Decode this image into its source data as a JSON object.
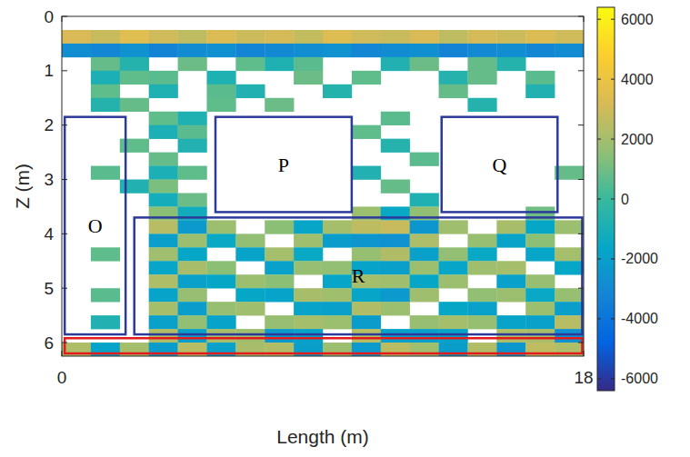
{
  "chart_data": {
    "type": "heatmap",
    "xlabel": "Length (m)",
    "ylabel": "Z (m)",
    "x": [
      0.5,
      1.5,
      2.5,
      3.5,
      4.5,
      5.5,
      6.5,
      7.5,
      8.5,
      9.5,
      10.5,
      11.5,
      12.5,
      13.5,
      14.5,
      15.5,
      16.5,
      17.5
    ],
    "y": [
      0.375,
      0.625,
      0.875,
      1.125,
      1.375,
      1.625,
      1.875,
      2.125,
      2.375,
      2.625,
      2.875,
      3.125,
      3.375,
      3.625,
      3.875,
      4.125,
      4.375,
      4.625,
      4.875,
      5.125,
      5.375,
      5.625,
      5.875,
      6.125
    ],
    "cells": [
      [
        3200,
        2800,
        3500,
        3000,
        2600,
        3300,
        2900,
        3100,
        2700,
        3400,
        3000,
        2800,
        3200,
        2600,
        3100,
        2900,
        3300,
        3000
      ],
      [
        -2800,
        -3100,
        -2600,
        -3300,
        -2900,
        -2700,
        -3200,
        -3000,
        -2800,
        -2600,
        -3100,
        -2900,
        -2700,
        -3300,
        -3000,
        -2800,
        -3100,
        -2900
      ],
      [
        null,
        800,
        -600,
        null,
        900,
        null,
        700,
        -800,
        600,
        null,
        null,
        -700,
        900,
        null,
        800,
        -600,
        null,
        null
      ],
      [
        null,
        -900,
        700,
        600,
        null,
        -800,
        null,
        null,
        900,
        null,
        700,
        null,
        null,
        -600,
        800,
        null,
        600,
        null
      ],
      [
        null,
        700,
        null,
        -800,
        null,
        600,
        -700,
        null,
        null,
        -600,
        null,
        null,
        null,
        800,
        null,
        null,
        -700,
        null
      ],
      [
        null,
        -600,
        800,
        null,
        null,
        700,
        null,
        900,
        null,
        null,
        null,
        null,
        null,
        null,
        -600,
        null,
        null,
        null
      ],
      [
        null,
        null,
        null,
        700,
        -800,
        null,
        null,
        null,
        null,
        null,
        null,
        600,
        null,
        null,
        null,
        null,
        null,
        null
      ],
      [
        null,
        null,
        null,
        -900,
        600,
        null,
        null,
        null,
        null,
        null,
        700,
        null,
        null,
        null,
        null,
        null,
        null,
        null
      ],
      [
        null,
        null,
        700,
        null,
        -700,
        null,
        null,
        null,
        null,
        null,
        null,
        -600,
        null,
        null,
        null,
        null,
        null,
        null
      ],
      [
        null,
        null,
        null,
        800,
        null,
        null,
        null,
        null,
        null,
        null,
        null,
        null,
        600,
        null,
        null,
        null,
        null,
        null
      ],
      [
        null,
        600,
        null,
        -900,
        700,
        null,
        null,
        null,
        null,
        null,
        -700,
        null,
        null,
        null,
        null,
        null,
        null,
        800
      ],
      [
        null,
        null,
        -700,
        1200,
        null,
        null,
        null,
        null,
        null,
        null,
        null,
        800,
        null,
        null,
        null,
        null,
        null,
        null
      ],
      [
        null,
        null,
        null,
        -1100,
        900,
        null,
        null,
        null,
        null,
        null,
        null,
        null,
        -800,
        null,
        null,
        null,
        null,
        null
      ],
      [
        null,
        null,
        null,
        1500,
        -1200,
        null,
        null,
        null,
        null,
        null,
        1800,
        -1500,
        1600,
        null,
        null,
        null,
        1000,
        null
      ],
      [
        null,
        null,
        null,
        2400,
        -2200,
        1800,
        null,
        1500,
        -1700,
        2000,
        2600,
        2800,
        -2400,
        1900,
        null,
        2100,
        -1600,
        1800
      ],
      [
        null,
        null,
        null,
        -2000,
        1800,
        -1500,
        1600,
        null,
        1900,
        -2100,
        -2400,
        -2600,
        2200,
        null,
        1700,
        -1800,
        1500,
        null
      ],
      [
        null,
        700,
        null,
        1900,
        -1600,
        null,
        -1800,
        2000,
        -1500,
        null,
        1700,
        2300,
        -1900,
        1600,
        -1500,
        null,
        -1700,
        2000
      ],
      [
        null,
        null,
        null,
        -1700,
        2100,
        1500,
        null,
        -1900,
        1700,
        1600,
        -1800,
        -2000,
        1800,
        -1700,
        1900,
        2000,
        null,
        -1600
      ],
      [
        null,
        null,
        null,
        2200,
        -1900,
        -1600,
        1800,
        1500,
        null,
        -1700,
        2000,
        1900,
        -1600,
        1800,
        null,
        -1900,
        1700,
        null
      ],
      [
        null,
        600,
        null,
        -1800,
        1700,
        null,
        -1600,
        -1800,
        2100,
        1900,
        -1700,
        -2200,
        1900,
        null,
        1600,
        1800,
        -1500,
        1700
      ],
      [
        null,
        null,
        null,
        2000,
        -2100,
        1700,
        1900,
        null,
        -1800,
        -2000,
        2300,
        1800,
        null,
        -1600,
        -1900,
        null,
        1800,
        -2000
      ],
      [
        null,
        -700,
        null,
        -1900,
        1600,
        -1800,
        null,
        1700,
        2000,
        1800,
        -2100,
        null,
        1700,
        2000,
        1700,
        -1800,
        -1900,
        2400
      ],
      [
        null,
        null,
        null,
        2300,
        -2000,
        2100,
        1900,
        -2200,
        -1800,
        null,
        2400,
        -1900,
        -2000,
        -1800,
        null,
        2200,
        2100,
        -2600
      ],
      [
        2200,
        -1800,
        2000,
        -2100,
        2400,
        -1900,
        2100,
        2300,
        -2000,
        1800,
        -2200,
        2500,
        1900,
        -2100,
        2300,
        -2400,
        2600,
        2200
      ]
    ],
    "xlim": [
      0,
      18
    ],
    "ylim": [
      0,
      6.25
    ],
    "xticks": [
      0,
      18
    ],
    "yticks": [
      0,
      1,
      2,
      3,
      4,
      5,
      6
    ],
    "colorbar": {
      "lim": [
        -6400,
        6400
      ],
      "ticks": [
        -6000,
        -4000,
        -2000,
        0,
        2000,
        4000,
        6000
      ]
    },
    "regions": [
      {
        "label": "O",
        "x": [
          0.1,
          2.2
        ],
        "y": [
          1.85,
          5.85
        ],
        "color": "#2b3a9a"
      },
      {
        "label": "P",
        "x": [
          5.3,
          10.0
        ],
        "y": [
          1.85,
          3.6
        ],
        "color": "#2b3a9a"
      },
      {
        "label": "Q",
        "x": [
          13.1,
          17.1
        ],
        "y": [
          1.85,
          3.6
        ],
        "color": "#2b3a9a"
      },
      {
        "label": "R",
        "x": [
          2.5,
          17.95
        ],
        "y": [
          3.7,
          5.85
        ],
        "color": "#2b3a9a"
      },
      {
        "x": [
          0.1,
          17.95
        ],
        "y": [
          5.92,
          6.2
        ],
        "color": "#e31a1c"
      }
    ]
  }
}
